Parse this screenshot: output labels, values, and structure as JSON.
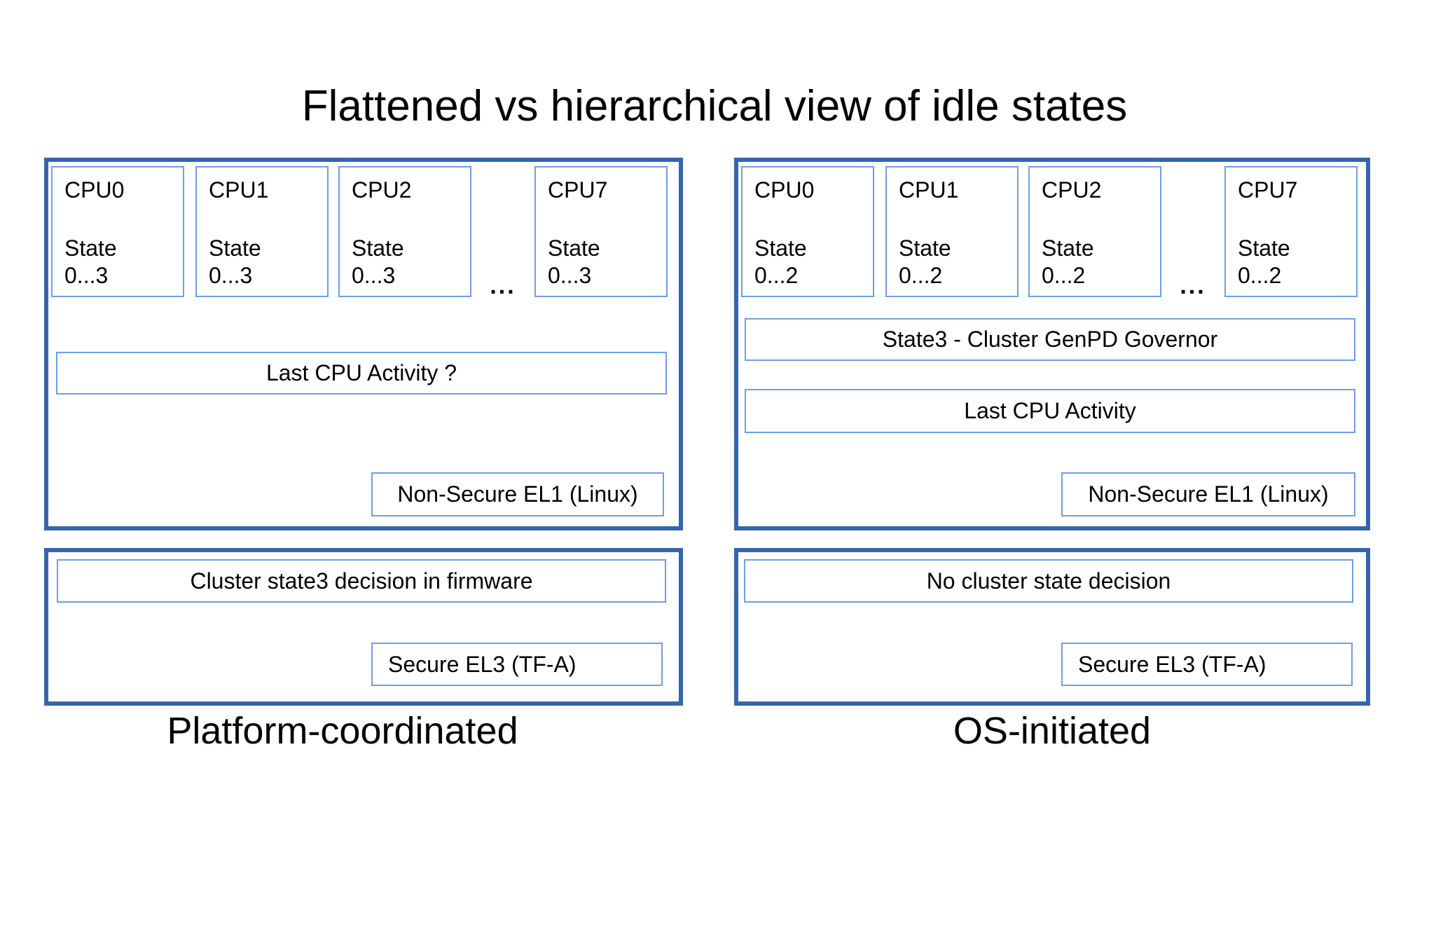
{
  "title": "Flattened vs hierarchical view of idle states",
  "colors": {
    "outer_border": "#3565ad",
    "inner_border": "#6d9eeb",
    "text": "#000000",
    "bg": "#ffffff"
  },
  "left": {
    "caption": "Platform-coordinated",
    "ellipsis": "...",
    "cpus": [
      {
        "name": "CPU0",
        "state_label": "State",
        "state_range": "0...3"
      },
      {
        "name": "CPU1",
        "state_label": "State",
        "state_range": "0...3"
      },
      {
        "name": "CPU2",
        "state_label": "State",
        "state_range": "0...3"
      },
      {
        "name": "CPU7",
        "state_label": "State",
        "state_range": "0...3"
      }
    ],
    "activity_box": "Last CPU Activity ?",
    "el1_box": "Non-Secure EL1 (Linux)",
    "firmware_box": "Cluster state3 decision in firmware",
    "el3_box": "Secure EL3 (TF-A)"
  },
  "right": {
    "caption": "OS-initiated",
    "ellipsis": "...",
    "cpus": [
      {
        "name": "CPU0",
        "state_label": "State",
        "state_range": "0...2"
      },
      {
        "name": "CPU1",
        "state_label": "State",
        "state_range": "0...2"
      },
      {
        "name": "CPU2",
        "state_label": "State",
        "state_range": "0...2"
      },
      {
        "name": "CPU7",
        "state_label": "State",
        "state_range": "0...2"
      }
    ],
    "governor_box": "State3 - Cluster GenPD Governor",
    "activity_box": "Last CPU Activity",
    "el1_box": "Non-Secure EL1 (Linux)",
    "decision_box": "No cluster state decision",
    "el3_box": "Secure EL3 (TF-A)"
  }
}
